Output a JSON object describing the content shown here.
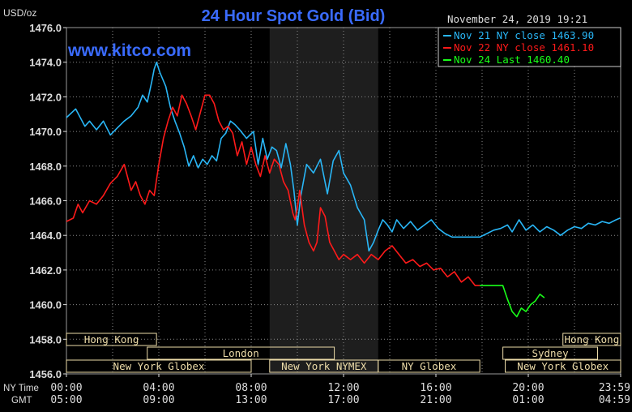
{
  "title": "24 Hour Spot Gold (Bid)",
  "watermark": "www.kitco.com",
  "timestamp": "November 24, 2019 19:21",
  "unit": "USD/oz",
  "row_labels": {
    "ny_time": "NY Time",
    "gmt": "GMT"
  },
  "colors": {
    "background": "#000000",
    "grid": "#8a8a8a",
    "title": "#3a6bff",
    "nov21": "#29b6f6",
    "nov22": "#ff1a1a",
    "nov24": "#19ff19",
    "session_band": "#1e1e1e",
    "market_box": "#ecdba8"
  },
  "chart_data": {
    "type": "line",
    "title": "24 Hour Spot Gold (Bid)",
    "ylabel": "USD/oz",
    "xlabel": "",
    "ylim": [
      1456.0,
      1476.0
    ],
    "xlim_hours": [
      0,
      24
    ],
    "grid": true,
    "legend_placement": "top-right",
    "y_ticks": [
      "1476.0",
      "1474.0",
      "1472.0",
      "1470.0",
      "1468.0",
      "1466.0",
      "1464.0",
      "1462.0",
      "1460.0",
      "1458.0",
      "1456.0"
    ],
    "x_ticks_ny": [
      "00:00",
      "04:00",
      "08:00",
      "12:00",
      "16:00",
      "20:00",
      "23:59"
    ],
    "x_ticks_gmt": [
      "05:00",
      "09:00",
      "13:00",
      "17:00",
      "21:00",
      "01:00",
      "04:59"
    ],
    "legend": [
      {
        "label": "Nov 21 NY close 1463.90",
        "series": "nov21"
      },
      {
        "label": "Nov 22 NY close 1461.10",
        "series": "nov22"
      },
      {
        "label": "Nov 24 Last 1460.40",
        "series": "nov24"
      }
    ],
    "series": [
      {
        "key": "nov21",
        "x": [
          0,
          0.4,
          0.8,
          1.0,
          1.3,
          1.6,
          1.9,
          2.2,
          2.5,
          2.8,
          3.1,
          3.3,
          3.5,
          3.7,
          3.8,
          3.9,
          4.05,
          4.3,
          4.5,
          4.7,
          4.9,
          5.1,
          5.3,
          5.5,
          5.7,
          5.9,
          6.1,
          6.3,
          6.5,
          6.7,
          6.9,
          7.1,
          7.3,
          7.5,
          7.8,
          8.1,
          8.3,
          8.5,
          8.7,
          8.9,
          9.1,
          9.3,
          9.5,
          9.7,
          9.85,
          10.0,
          10.15,
          10.4,
          10.7,
          11.0,
          11.3,
          11.55,
          11.8,
          12.0,
          12.3,
          12.6,
          12.9,
          13.1,
          13.3,
          13.5,
          13.7,
          13.9,
          14.1,
          14.3,
          14.6,
          14.9,
          15.2,
          15.5,
          15.8,
          16.1,
          16.4,
          16.7,
          17.0,
          17.3,
          17.6,
          17.9,
          18.2,
          18.5,
          18.8,
          19.1,
          19.3,
          19.6,
          19.9,
          20.2,
          20.5,
          20.8,
          21.1,
          21.4,
          21.7,
          22.0,
          22.3,
          22.6,
          22.9,
          23.2,
          23.5,
          23.8,
          23.98
        ],
        "y": [
          1470.8,
          1471.3,
          1470.3,
          1470.6,
          1470.1,
          1470.6,
          1469.8,
          1470.2,
          1470.6,
          1470.9,
          1471.4,
          1472.1,
          1471.7,
          1472.9,
          1473.6,
          1474.0,
          1473.4,
          1472.6,
          1471.4,
          1470.6,
          1469.9,
          1469.1,
          1468.0,
          1468.6,
          1467.9,
          1468.4,
          1468.1,
          1468.6,
          1468.3,
          1469.6,
          1469.9,
          1470.6,
          1470.4,
          1470.1,
          1469.6,
          1470.0,
          1468.1,
          1469.6,
          1468.4,
          1469.1,
          1468.9,
          1467.9,
          1469.3,
          1468.1,
          1466.6,
          1464.6,
          1466.3,
          1468.1,
          1467.6,
          1468.4,
          1466.4,
          1468.3,
          1468.9,
          1467.6,
          1466.9,
          1465.6,
          1464.9,
          1463.1,
          1463.6,
          1464.3,
          1464.9,
          1464.6,
          1464.2,
          1464.9,
          1464.4,
          1464.8,
          1464.3,
          1464.6,
          1464.9,
          1464.4,
          1464.1,
          1463.9,
          1463.9,
          1463.9,
          1463.9,
          1463.9,
          1464.1,
          1464.3,
          1464.4,
          1464.6,
          1464.2,
          1464.9,
          1464.3,
          1464.6,
          1464.2,
          1464.5,
          1464.3,
          1464.0,
          1464.3,
          1464.5,
          1464.4,
          1464.7,
          1464.6,
          1464.8,
          1464.7,
          1464.9,
          1465.0
        ]
      },
      {
        "key": "nov22",
        "x": [
          0,
          0.3,
          0.5,
          0.7,
          1.0,
          1.3,
          1.6,
          1.9,
          2.2,
          2.5,
          2.8,
          3.0,
          3.2,
          3.4,
          3.6,
          3.8,
          4.0,
          4.2,
          4.4,
          4.6,
          4.8,
          5.0,
          5.2,
          5.4,
          5.6,
          5.8,
          6.0,
          6.2,
          6.4,
          6.6,
          6.8,
          7.0,
          7.2,
          7.4,
          7.6,
          7.8,
          8.0,
          8.2,
          8.4,
          8.6,
          8.8,
          9.0,
          9.2,
          9.4,
          9.6,
          9.8,
          9.9,
          10.0,
          10.1,
          10.3,
          10.5,
          10.7,
          10.85,
          11.0,
          11.2,
          11.4,
          11.6,
          11.8,
          12.0,
          12.3,
          12.6,
          12.9,
          13.2,
          13.5,
          13.8,
          14.1,
          14.4,
          14.7,
          15.0,
          15.3,
          15.6,
          15.9,
          16.2,
          16.5,
          16.8,
          17.1,
          17.4,
          17.7,
          17.9
        ],
        "y": [
          1464.8,
          1465.0,
          1465.8,
          1465.3,
          1466.0,
          1465.8,
          1466.3,
          1467.0,
          1467.4,
          1468.1,
          1466.6,
          1467.1,
          1466.3,
          1465.8,
          1466.6,
          1466.3,
          1468.1,
          1469.6,
          1470.6,
          1471.4,
          1470.9,
          1472.1,
          1471.6,
          1470.9,
          1470.1,
          1471.1,
          1472.1,
          1472.1,
          1471.6,
          1470.6,
          1470.1,
          1470.3,
          1469.9,
          1468.6,
          1469.4,
          1468.1,
          1469.1,
          1468.1,
          1467.4,
          1468.6,
          1467.6,
          1468.4,
          1468.1,
          1467.1,
          1466.6,
          1465.3,
          1464.9,
          1465.6,
          1466.6,
          1464.6,
          1463.6,
          1463.1,
          1463.6,
          1465.6,
          1465.1,
          1463.6,
          1463.1,
          1462.6,
          1462.9,
          1462.6,
          1462.9,
          1462.4,
          1462.9,
          1462.6,
          1463.1,
          1463.4,
          1462.9,
          1462.4,
          1462.6,
          1462.2,
          1462.4,
          1462.0,
          1462.1,
          1461.6,
          1461.9,
          1461.3,
          1461.6,
          1461.1,
          1461.1
        ]
      },
      {
        "key": "nov24",
        "x": [
          17.9,
          18.4,
          18.9,
          19.1,
          19.3,
          19.5,
          19.7,
          19.9,
          20.1,
          20.3,
          20.5,
          20.7
        ],
        "y": [
          1461.1,
          1461.1,
          1461.1,
          1460.3,
          1459.6,
          1459.3,
          1459.8,
          1459.6,
          1460.0,
          1460.2,
          1460.6,
          1460.4
        ]
      }
    ],
    "sessions": [
      {
        "label": "Hong Kong",
        "row": 0,
        "start": 0,
        "end": 3.9
      },
      {
        "label": "Hong Kong",
        "row": 0,
        "start": 21.5,
        "end": 24
      },
      {
        "label": "London",
        "row": 1,
        "start": 3.5,
        "end": 11.6
      },
      {
        "label": "Sydney",
        "row": 1,
        "start": 18.9,
        "end": 23.0
      },
      {
        "label": "New York Globex",
        "row": 2,
        "start": 0,
        "end": 8.0
      },
      {
        "label": "New York NYMEX",
        "row": 2,
        "start": 8.8,
        "end": 13.5
      },
      {
        "label": "NY Globex",
        "row": 2,
        "start": 13.5,
        "end": 17.9
      },
      {
        "label": "New York Globex",
        "row": 2,
        "start": 19.0,
        "end": 24
      }
    ],
    "shaded_band_hours": [
      8.8,
      13.5
    ]
  }
}
